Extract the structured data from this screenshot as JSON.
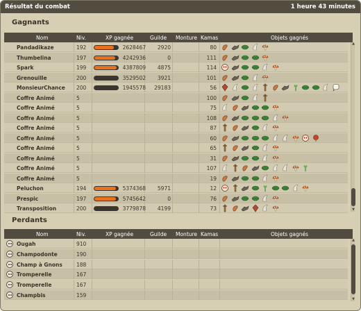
{
  "title": "Résultat du combat",
  "duration": "1 heure 43 minutes",
  "winners": {
    "section_title": "Gagnants",
    "columns": [
      "Nom",
      "Niv.",
      "XP gagnée",
      "Guilde",
      "Monture",
      "Kamas",
      "Objets gagnés"
    ],
    "rows": [
      {
        "name": "Pandadikaze",
        "level": "192",
        "xp": "2628467",
        "xp_progress": 0.82,
        "guild": "2920",
        "mount": "",
        "kamas": "80",
        "items": [
          "ear",
          "wing",
          "leaf",
          "horn",
          "mushroom"
        ]
      },
      {
        "name": "Thumbelina",
        "level": "197",
        "xp": "4242936",
        "xp_progress": 0.88,
        "guild": "0",
        "mount": "",
        "kamas": "111",
        "items": [
          "ear",
          "wing",
          "leaf",
          "leaf",
          "mushroom"
        ]
      },
      {
        "name": "Spark",
        "level": "199",
        "xp": "4387809",
        "xp_progress": 0.93,
        "guild": "4875",
        "mount": "",
        "kamas": "114",
        "items": [
          "mask",
          "wing",
          "leaf",
          "leaf",
          "horn",
          "mushroom"
        ]
      },
      {
        "name": "Grenouille",
        "level": "200",
        "xp": "3529502",
        "xp_progress": 0.0,
        "guild": "3921",
        "mount": "",
        "kamas": "101",
        "items": [
          "ear",
          "wing",
          "leaf",
          "horn",
          "mushroom"
        ]
      },
      {
        "name": "MonsieurChance",
        "level": "200",
        "xp": "1945578",
        "xp_progress": 0.0,
        "guild": "29183",
        "mount": "",
        "kamas": "56",
        "items": [
          "gem",
          "horn",
          "leaf",
          "horn",
          "stick",
          "ear",
          "wing",
          "sprout",
          "leaf",
          "leaf",
          "horn",
          "bubble"
        ]
      },
      {
        "name": "Coffre Animé",
        "level": "5",
        "xp": "",
        "xp_progress": null,
        "guild": "",
        "mount": "",
        "kamas": "100",
        "items": [
          "ear",
          "wing",
          "leaf",
          "horn",
          "stick"
        ]
      },
      {
        "name": "Coffre Animé",
        "level": "5",
        "xp": "",
        "xp_progress": null,
        "guild": "",
        "mount": "",
        "kamas": "75",
        "items": [
          "horn",
          "ear",
          "wing",
          "leaf",
          "leaf",
          "mushroom"
        ]
      },
      {
        "name": "Coffre Animé",
        "level": "5",
        "xp": "",
        "xp_progress": null,
        "guild": "",
        "mount": "",
        "kamas": "108",
        "items": [
          "ear",
          "wing",
          "leaf",
          "leaf",
          "leaf",
          "horn",
          "mushroom"
        ]
      },
      {
        "name": "Coffre Animé",
        "level": "5",
        "xp": "",
        "xp_progress": null,
        "guild": "",
        "mount": "",
        "kamas": "87",
        "items": [
          "stick",
          "ear",
          "wing",
          "leaf",
          "horn",
          "mushroom"
        ]
      },
      {
        "name": "Coffre Animé",
        "level": "5",
        "xp": "",
        "xp_progress": null,
        "guild": "",
        "mount": "",
        "kamas": "60",
        "items": [
          "ear",
          "wing",
          "leaf",
          "leaf",
          "leaf",
          "horn",
          "horn",
          "mushroom",
          "mask",
          "flower"
        ]
      },
      {
        "name": "Coffre Animé",
        "level": "5",
        "xp": "",
        "xp_progress": null,
        "guild": "",
        "mount": "",
        "kamas": "65",
        "items": [
          "stick",
          "ear",
          "wing",
          "leaf",
          "horn",
          "mushroom"
        ]
      },
      {
        "name": "Coffre Animé",
        "level": "5",
        "xp": "",
        "xp_progress": null,
        "guild": "",
        "mount": "",
        "kamas": "31",
        "items": [
          "ear",
          "wing",
          "leaf",
          "leaf",
          "horn",
          "mushroom"
        ]
      },
      {
        "name": "Coffre Animé",
        "level": "5",
        "xp": "",
        "xp_progress": null,
        "guild": "",
        "mount": "",
        "kamas": "107",
        "items": [
          "horn",
          "stick",
          "ear",
          "wing",
          "leaf",
          "horn",
          "horn",
          "mushroom",
          "sprout"
        ]
      },
      {
        "name": "Coffre Animé",
        "level": "5",
        "xp": "",
        "xp_progress": null,
        "guild": "",
        "mount": "",
        "kamas": "19",
        "items": [
          "ear",
          "wing",
          "leaf",
          "leaf",
          "horn",
          "mushroom"
        ]
      },
      {
        "name": "Peluchon",
        "level": "194",
        "xp": "5374368",
        "xp_progress": 0.92,
        "guild": "5971",
        "mount": "",
        "kamas": "12",
        "items": [
          "mask",
          "stick",
          "wing",
          "leaf",
          "sprout",
          "leaf",
          "leaf",
          "horn",
          "mushroom"
        ]
      },
      {
        "name": "Prespic",
        "level": "197",
        "xp": "5745642",
        "xp_progress": 0.9,
        "guild": "0",
        "mount": "",
        "kamas": "76",
        "items": [
          "ear",
          "wing",
          "leaf",
          "leaf",
          "horn",
          "mushroom"
        ]
      },
      {
        "name": "Transposition",
        "level": "200",
        "xp": "3779878",
        "xp_progress": 0.0,
        "guild": "4199",
        "mount": "",
        "kamas": "73",
        "items": [
          "stick",
          "ear",
          "wing",
          "gem",
          "horn",
          "mushroom"
        ]
      }
    ]
  },
  "losers": {
    "section_title": "Perdants",
    "columns": [
      "Nom",
      "Niv.",
      "XP gagnée",
      "Guilde",
      "Monture",
      "Kamas",
      "Objets gagnés"
    ],
    "rows": [
      {
        "name": "Ougah",
        "level": "910"
      },
      {
        "name": "Champodonte",
        "level": "190"
      },
      {
        "name": "Champ à Gnons",
        "level": "188"
      },
      {
        "name": "Tromperelle",
        "level": "167"
      },
      {
        "name": "Tromperelle",
        "level": "167"
      },
      {
        "name": "Champbis",
        "level": "159"
      }
    ]
  },
  "colors": {
    "panel": "#d6cfb4",
    "header": "#514b40",
    "xp_bar_fill": "#e8711f",
    "xp_bar_track": "#3a3530"
  }
}
